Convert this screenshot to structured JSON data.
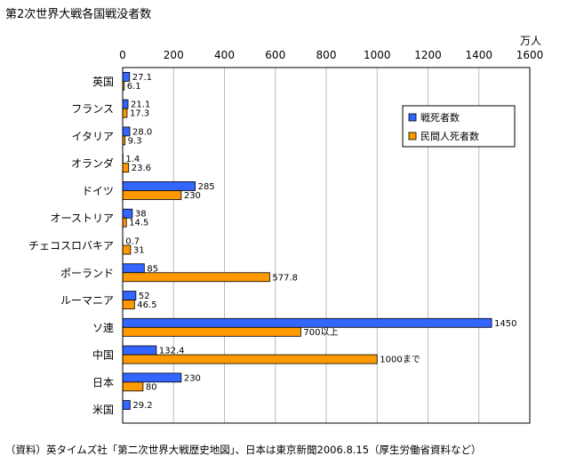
{
  "chart_data": {
    "type": "bar",
    "orientation": "horizontal",
    "title": "第2次世界大戦各国戦没者数",
    "unit": "万人",
    "source": "（資料）英タイムズ社「第二次世界大戦歴史地図」、日本は東京新聞2006.8.15（厚生労働省資料など）",
    "xlim": [
      0,
      1600
    ],
    "xticks": [
      0,
      200,
      400,
      600,
      800,
      1000,
      1200,
      1400,
      1600
    ],
    "grid": true,
    "legend_position": "right",
    "categories": [
      "英国",
      "フランス",
      "イタリア",
      "オランダ",
      "ドイツ",
      "オーストリア",
      "チェコスロバキア",
      "ポーランド",
      "ルーマニア",
      "ソ連",
      "中国",
      "日本",
      "米国"
    ],
    "series": [
      {
        "name": "戦死者数",
        "color": "#3366ff",
        "values": [
          27.1,
          21.1,
          28.0,
          1.4,
          285,
          38,
          0.7,
          85,
          52,
          1450,
          132.4,
          230,
          29.2
        ],
        "labels": [
          "27.1",
          "21.1",
          "28.0",
          "1.4",
          "285",
          "38",
          "0.7",
          "85",
          "52",
          "1450",
          "132.4",
          "230",
          "29.2"
        ]
      },
      {
        "name": "民間人死者数",
        "color": "#ff9900",
        "values": [
          6.1,
          17.3,
          9.3,
          23.6,
          230,
          14.5,
          31,
          577.8,
          46.5,
          700,
          1000,
          80,
          null
        ],
        "labels": [
          "6.1",
          "17.3",
          "9.3",
          "23.6",
          "230",
          "14.5",
          "31",
          "577.8",
          "46.5",
          "700以上",
          "1000まで",
          "80",
          null
        ]
      }
    ]
  }
}
